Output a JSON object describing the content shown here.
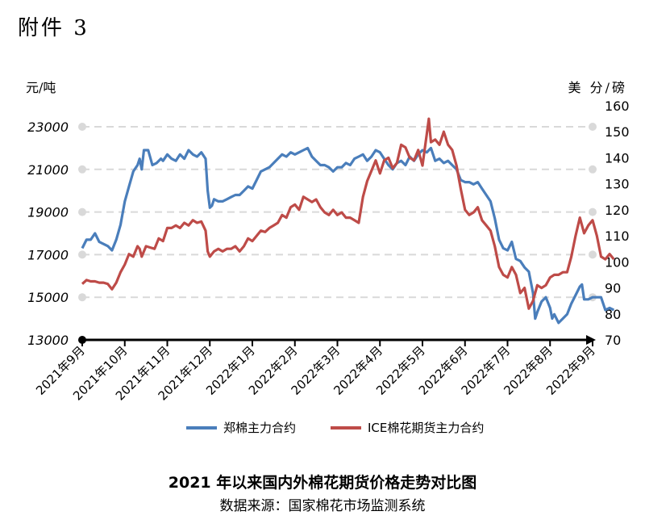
{
  "header": {
    "attachment": "附件 3"
  },
  "captions": {
    "title": "2021 年以来国内外棉花期货价格走势对比图",
    "source": "数据来源：国家棉花市场监测系统"
  },
  "colors": {
    "zce": "#4a7ebb",
    "ice": "#be4b48",
    "grid": "#d9d9d9",
    "axis": "#000000"
  },
  "chart_data": {
    "type": "line",
    "title": "2021 年以来国内外棉花期货价格走势对比图",
    "y_left": {
      "label": "元/吨",
      "range": [
        13000,
        23000
      ],
      "ticks": [
        13000,
        15000,
        17000,
        19000,
        21000,
        23000
      ]
    },
    "y_right": {
      "label": "美 分/磅",
      "range": [
        70,
        160
      ],
      "ticks": [
        70,
        80,
        90,
        100,
        110,
        120,
        130,
        140,
        150,
        160
      ]
    },
    "x_ticks": [
      "2021年9月",
      "2021年10月",
      "2021年11月",
      "2021年12月",
      "2022年1月",
      "2022年2月",
      "2022年3月",
      "2022年4月",
      "2022年5月",
      "2022年6月",
      "2022年7月",
      "2022年8月",
      "2022年9月"
    ],
    "grid": "horizontal dashed",
    "legend_position": "bottom",
    "series": [
      {
        "name": "郑棉主力合约",
        "axis": "left",
        "color": "#4a7ebb",
        "points": [
          [
            0,
            17300
          ],
          [
            0.1,
            17700
          ],
          [
            0.2,
            17700
          ],
          [
            0.3,
            18000
          ],
          [
            0.4,
            17600
          ],
          [
            0.5,
            17500
          ],
          [
            0.6,
            17400
          ],
          [
            0.7,
            17200
          ],
          [
            0.8,
            17700
          ],
          [
            0.9,
            18400
          ],
          [
            1.0,
            19500
          ],
          [
            1.1,
            20200
          ],
          [
            1.2,
            20900
          ],
          [
            1.3,
            21200
          ],
          [
            1.35,
            21500
          ],
          [
            1.4,
            21000
          ],
          [
            1.45,
            21900
          ],
          [
            1.55,
            21900
          ],
          [
            1.65,
            21200
          ],
          [
            1.75,
            21300
          ],
          [
            1.85,
            21500
          ],
          [
            1.9,
            21400
          ],
          [
            2.0,
            21700
          ],
          [
            2.1,
            21500
          ],
          [
            2.2,
            21400
          ],
          [
            2.3,
            21700
          ],
          [
            2.4,
            21500
          ],
          [
            2.5,
            21900
          ],
          [
            2.6,
            21700
          ],
          [
            2.7,
            21600
          ],
          [
            2.8,
            21800
          ],
          [
            2.9,
            21500
          ],
          [
            2.95,
            20000
          ],
          [
            3.0,
            19200
          ],
          [
            3.05,
            19300
          ],
          [
            3.1,
            19600
          ],
          [
            3.2,
            19500
          ],
          [
            3.3,
            19500
          ],
          [
            3.4,
            19600
          ],
          [
            3.5,
            19700
          ],
          [
            3.6,
            19800
          ],
          [
            3.7,
            19800
          ],
          [
            3.8,
            20000
          ],
          [
            3.9,
            20200
          ],
          [
            4.0,
            20100
          ],
          [
            4.1,
            20500
          ],
          [
            4.2,
            20900
          ],
          [
            4.3,
            21000
          ],
          [
            4.4,
            21100
          ],
          [
            4.5,
            21300
          ],
          [
            4.6,
            21500
          ],
          [
            4.7,
            21700
          ],
          [
            4.8,
            21600
          ],
          [
            4.9,
            21800
          ],
          [
            5.0,
            21700
          ],
          [
            5.1,
            21800
          ],
          [
            5.2,
            21900
          ],
          [
            5.3,
            22000
          ],
          [
            5.4,
            21600
          ],
          [
            5.5,
            21400
          ],
          [
            5.6,
            21200
          ],
          [
            5.7,
            21200
          ],
          [
            5.8,
            21100
          ],
          [
            5.9,
            20900
          ],
          [
            6.0,
            21100
          ],
          [
            6.1,
            21100
          ],
          [
            6.2,
            21300
          ],
          [
            6.3,
            21200
          ],
          [
            6.4,
            21500
          ],
          [
            6.5,
            21600
          ],
          [
            6.6,
            21700
          ],
          [
            6.7,
            21400
          ],
          [
            6.8,
            21600
          ],
          [
            6.9,
            21900
          ],
          [
            7.0,
            21800
          ],
          [
            7.1,
            21500
          ],
          [
            7.2,
            21200
          ],
          [
            7.3,
            21000
          ],
          [
            7.4,
            21300
          ],
          [
            7.5,
            21400
          ],
          [
            7.6,
            21200
          ],
          [
            7.7,
            21600
          ],
          [
            7.8,
            21400
          ],
          [
            7.9,
            21700
          ],
          [
            8.0,
            21900
          ],
          [
            8.1,
            21800
          ],
          [
            8.2,
            22000
          ],
          [
            8.3,
            21400
          ],
          [
            8.4,
            21500
          ],
          [
            8.5,
            21300
          ],
          [
            8.6,
            21400
          ],
          [
            8.7,
            21200
          ],
          [
            8.8,
            21000
          ],
          [
            8.9,
            20500
          ],
          [
            9.0,
            20400
          ],
          [
            9.1,
            20400
          ],
          [
            9.2,
            20300
          ],
          [
            9.3,
            20400
          ],
          [
            9.4,
            20100
          ],
          [
            9.5,
            19800
          ],
          [
            9.6,
            19500
          ],
          [
            9.7,
            18700
          ],
          [
            9.8,
            17700
          ],
          [
            9.9,
            17300
          ],
          [
            10.0,
            17200
          ],
          [
            10.1,
            17600
          ],
          [
            10.2,
            16800
          ],
          [
            10.3,
            16700
          ],
          [
            10.4,
            16400
          ],
          [
            10.5,
            16200
          ],
          [
            10.6,
            15200
          ],
          [
            10.65,
            14000
          ],
          [
            10.7,
            14300
          ],
          [
            10.8,
            14800
          ],
          [
            10.9,
            15000
          ],
          [
            11.0,
            14500
          ],
          [
            11.05,
            14000
          ],
          [
            11.1,
            14200
          ],
          [
            11.2,
            13800
          ],
          [
            11.3,
            14000
          ],
          [
            11.4,
            14200
          ],
          [
            11.5,
            14700
          ],
          [
            11.6,
            15100
          ],
          [
            11.7,
            15500
          ],
          [
            11.75,
            15600
          ],
          [
            11.8,
            14900
          ],
          [
            11.9,
            14900
          ],
          [
            12.0,
            15000
          ],
          [
            12.1,
            15000
          ],
          [
            12.2,
            15000
          ],
          [
            12.3,
            14400
          ],
          [
            12.4,
            14500
          ],
          [
            12.5,
            14400
          ]
        ]
      },
      {
        "name": "ICE棉花期货主力合约",
        "axis": "right",
        "color": "#be4b48",
        "points": [
          [
            0,
            91.5
          ],
          [
            0.1,
            93
          ],
          [
            0.2,
            92.5
          ],
          [
            0.3,
            92.5
          ],
          [
            0.4,
            92
          ],
          [
            0.5,
            92
          ],
          [
            0.6,
            91.5
          ],
          [
            0.7,
            89.5
          ],
          [
            0.8,
            92
          ],
          [
            0.9,
            96
          ],
          [
            1.0,
            99
          ],
          [
            1.1,
            103
          ],
          [
            1.2,
            102
          ],
          [
            1.3,
            106
          ],
          [
            1.35,
            105
          ],
          [
            1.4,
            102
          ],
          [
            1.5,
            106
          ],
          [
            1.6,
            105.5
          ],
          [
            1.7,
            105
          ],
          [
            1.8,
            109
          ],
          [
            1.9,
            108
          ],
          [
            2.0,
            113
          ],
          [
            2.1,
            113
          ],
          [
            2.2,
            114
          ],
          [
            2.3,
            113
          ],
          [
            2.4,
            115
          ],
          [
            2.5,
            114
          ],
          [
            2.6,
            116
          ],
          [
            2.7,
            115
          ],
          [
            2.8,
            115.5
          ],
          [
            2.9,
            112
          ],
          [
            2.95,
            104
          ],
          [
            3.0,
            102
          ],
          [
            3.1,
            104
          ],
          [
            3.2,
            105
          ],
          [
            3.3,
            104
          ],
          [
            3.4,
            105
          ],
          [
            3.5,
            105
          ],
          [
            3.6,
            106
          ],
          [
            3.7,
            104
          ],
          [
            3.8,
            106
          ],
          [
            3.9,
            109
          ],
          [
            4.0,
            108
          ],
          [
            4.1,
            110
          ],
          [
            4.2,
            112
          ],
          [
            4.3,
            111.5
          ],
          [
            4.4,
            113
          ],
          [
            4.5,
            114
          ],
          [
            4.6,
            115
          ],
          [
            4.7,
            118
          ],
          [
            4.8,
            117
          ],
          [
            4.9,
            121
          ],
          [
            5.0,
            122
          ],
          [
            5.1,
            120
          ],
          [
            5.2,
            125
          ],
          [
            5.3,
            124
          ],
          [
            5.4,
            123
          ],
          [
            5.5,
            124
          ],
          [
            5.6,
            121
          ],
          [
            5.7,
            119
          ],
          [
            5.8,
            118
          ],
          [
            5.9,
            120
          ],
          [
            6.0,
            118
          ],
          [
            6.1,
            119
          ],
          [
            6.2,
            117
          ],
          [
            6.3,
            117
          ],
          [
            6.4,
            116
          ],
          [
            6.5,
            115
          ],
          [
            6.6,
            125
          ],
          [
            6.7,
            131
          ],
          [
            6.8,
            135
          ],
          [
            6.9,
            139
          ],
          [
            7.0,
            134
          ],
          [
            7.1,
            139
          ],
          [
            7.2,
            140
          ],
          [
            7.3,
            136
          ],
          [
            7.4,
            138
          ],
          [
            7.5,
            145
          ],
          [
            7.6,
            144
          ],
          [
            7.7,
            140
          ],
          [
            7.8,
            139
          ],
          [
            7.9,
            143
          ],
          [
            8.0,
            137
          ],
          [
            8.1,
            149
          ],
          [
            8.15,
            155
          ],
          [
            8.2,
            146
          ],
          [
            8.3,
            147
          ],
          [
            8.4,
            145
          ],
          [
            8.5,
            150
          ],
          [
            8.6,
            145
          ],
          [
            8.7,
            143
          ],
          [
            8.8,
            137
          ],
          [
            8.9,
            128
          ],
          [
            9.0,
            120
          ],
          [
            9.1,
            118
          ],
          [
            9.2,
            119
          ],
          [
            9.3,
            121
          ],
          [
            9.4,
            116
          ],
          [
            9.5,
            114
          ],
          [
            9.6,
            112
          ],
          [
            9.7,
            106
          ],
          [
            9.8,
            98
          ],
          [
            9.9,
            95
          ],
          [
            10.0,
            94
          ],
          [
            10.1,
            98
          ],
          [
            10.2,
            95
          ],
          [
            10.3,
            88
          ],
          [
            10.4,
            90
          ],
          [
            10.5,
            82
          ],
          [
            10.6,
            85
          ],
          [
            10.7,
            91
          ],
          [
            10.8,
            90
          ],
          [
            10.9,
            91
          ],
          [
            11.0,
            94
          ],
          [
            11.1,
            95
          ],
          [
            11.2,
            95
          ],
          [
            11.3,
            96
          ],
          [
            11.4,
            96
          ],
          [
            11.5,
            102
          ],
          [
            11.6,
            110
          ],
          [
            11.7,
            117
          ],
          [
            11.8,
            111
          ],
          [
            11.9,
            114
          ],
          [
            12.0,
            116
          ],
          [
            12.1,
            110
          ],
          [
            12.2,
            102
          ],
          [
            12.3,
            101
          ],
          [
            12.4,
            103
          ],
          [
            12.5,
            101
          ]
        ]
      }
    ]
  }
}
